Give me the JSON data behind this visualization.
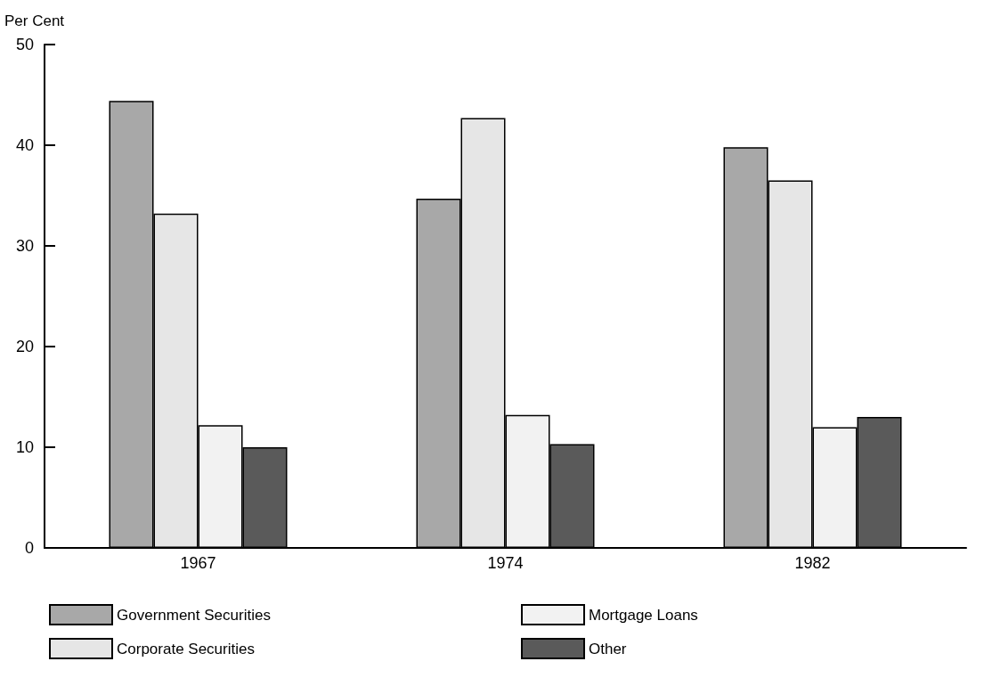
{
  "chart_data": {
    "type": "bar",
    "ylabel": "Per Cent",
    "categories": [
      "1967",
      "1974",
      "1982"
    ],
    "series": [
      {
        "name": "Government Securities",
        "color": "#a8a8a8",
        "values": [
          44.4,
          34.7,
          39.8
        ]
      },
      {
        "name": "Corporate Securities",
        "color": "#e6e6e6",
        "values": [
          33.2,
          42.7,
          36.5
        ]
      },
      {
        "name": "Mortgage Loans",
        "color": "#f2f2f2",
        "values": [
          12.2,
          13.2,
          12
        ]
      },
      {
        "name": "Other",
        "color": "#5a5a5a",
        "values": [
          10,
          10.3,
          13
        ]
      }
    ],
    "ylim": [
      0,
      50
    ],
    "yticks": [
      0,
      10,
      20,
      30,
      40,
      50
    ],
    "grid": false,
    "legend": "bottom"
  }
}
